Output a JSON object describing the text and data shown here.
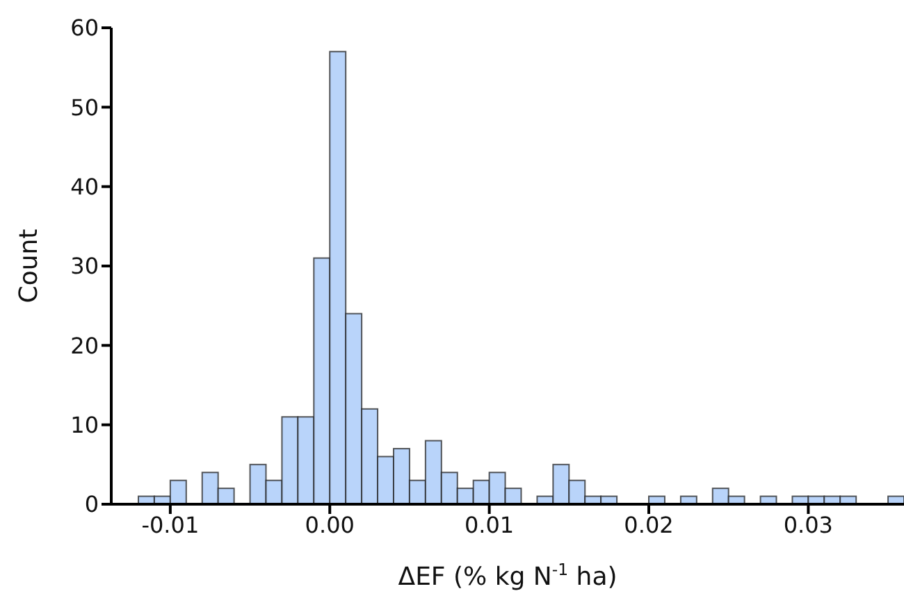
{
  "chart_data": {
    "type": "histogram",
    "xlabel": "ΔEF (% kg N$^{-1}$ ha)",
    "ylabel": "Count",
    "color": "#b9d4fa",
    "bins": [
      -0.012,
      -0.011,
      -0.01,
      -0.009,
      -0.008,
      -0.007,
      -0.006,
      -0.005,
      -0.004,
      -0.003,
      -0.002,
      -0.001,
      0,
      0.001,
      0.002,
      0.003,
      0.004,
      0.005,
      0.006,
      0.007,
      0.008,
      0.009,
      0.01,
      0.011,
      0.012,
      0.013,
      0.014,
      0.015,
      0.016,
      0.017,
      0.018,
      0.019,
      0.02,
      0.021,
      0.022,
      0.023,
      0.024,
      0.025,
      0.026,
      0.027,
      0.028,
      0.029,
      0.03,
      0.031,
      0.032,
      0.033,
      0.034,
      0.035,
      0.036
    ],
    "values": [
      1,
      1,
      3,
      0,
      4,
      2,
      0,
      5,
      3,
      11,
      11,
      31,
      57,
      24,
      12,
      6,
      7,
      3,
      8,
      4,
      2,
      3,
      4,
      2,
      0,
      1,
      5,
      3,
      1,
      1,
      0,
      0,
      1,
      0,
      1,
      0,
      2,
      1,
      0,
      1,
      0,
      1,
      1,
      1,
      1,
      0,
      0,
      1
    ],
    "xlim": [
      -0.0137,
      0.036
    ],
    "ylim": [
      0,
      60
    ],
    "xticks": [
      {
        "value": -0.01,
        "label": "-0.01"
      },
      {
        "value": 0,
        "label": "0.00"
      },
      {
        "value": 0.01,
        "label": "0.01"
      },
      {
        "value": 0.02,
        "label": "0.02"
      },
      {
        "value": 0.03,
        "label": "0.03"
      }
    ],
    "yticks": [
      0,
      10,
      20,
      30,
      40,
      50,
      60
    ],
    "grid": false,
    "legend": false
  }
}
